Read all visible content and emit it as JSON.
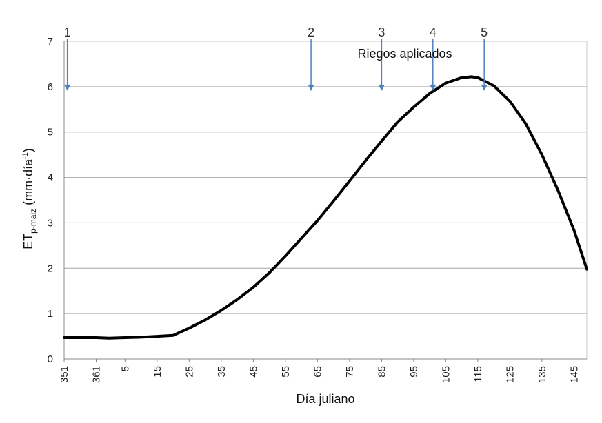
{
  "chart_data": {
    "type": "line",
    "title": "",
    "xlabel": "Día juliano",
    "ylabel": {
      "main": "ET",
      "sub": "p-maiz",
      "unit_open": " (mm·día",
      "unit_sup": "-1",
      "unit_close": ")"
    },
    "ylim": [
      0,
      7
    ],
    "yticks": [
      0,
      1,
      2,
      3,
      4,
      5,
      6,
      7
    ],
    "xlim": [
      351,
      149
    ],
    "xticks": [
      "351",
      "361",
      "5",
      "15",
      "25",
      "35",
      "45",
      "55",
      "65",
      "75",
      "85",
      "95",
      "105",
      "115",
      "125",
      "135",
      "145"
    ],
    "grid": "horizontal",
    "colors": {
      "curve": "#000000",
      "grid": "#a6a6a6",
      "arrow": "#4f81bd",
      "axis": "#888888"
    },
    "series": [
      {
        "points": [
          [
            351,
            0.47
          ],
          [
            356,
            0.47
          ],
          [
            361,
            0.47
          ],
          [
            0,
            0.46
          ],
          [
            5,
            0.47
          ],
          [
            10,
            0.48
          ],
          [
            15,
            0.5
          ],
          [
            20,
            0.52
          ],
          [
            25,
            0.68
          ],
          [
            30,
            0.86
          ],
          [
            35,
            1.07
          ],
          [
            40,
            1.31
          ],
          [
            45,
            1.58
          ],
          [
            50,
            1.9
          ],
          [
            55,
            2.27
          ],
          [
            60,
            2.66
          ],
          [
            65,
            3.05
          ],
          [
            70,
            3.48
          ],
          [
            75,
            3.92
          ],
          [
            80,
            4.37
          ],
          [
            85,
            4.8
          ],
          [
            90,
            5.22
          ],
          [
            95,
            5.55
          ],
          [
            100,
            5.85
          ],
          [
            105,
            6.08
          ],
          [
            110,
            6.2
          ],
          [
            113,
            6.22
          ],
          [
            115,
            6.2
          ],
          [
            120,
            6.02
          ],
          [
            125,
            5.68
          ],
          [
            130,
            5.18
          ],
          [
            135,
            4.5
          ],
          [
            140,
            3.72
          ],
          [
            145,
            2.84
          ],
          [
            149,
            1.98
          ]
        ]
      }
    ],
    "annotations": {
      "label": "Riegos aplicados",
      "arrows": [
        {
          "num": "1",
          "x": 352
        },
        {
          "num": "2",
          "x": 63
        },
        {
          "num": "3",
          "x": 85
        },
        {
          "num": "4",
          "x": 101
        },
        {
          "num": "5",
          "x": 117
        }
      ],
      "arrow_tip_y": 6.0
    }
  }
}
